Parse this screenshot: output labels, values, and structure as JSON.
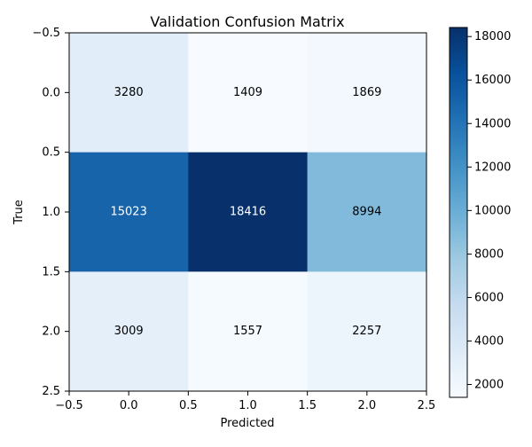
{
  "chart_data": {
    "type": "heatmap",
    "title": "Validation Confusion Matrix",
    "xlabel": "Predicted",
    "ylabel": "True",
    "x_ticks": [
      "−0.5",
      "0.0",
      "0.5",
      "1.0",
      "1.5",
      "2.0",
      "2.5"
    ],
    "y_ticks": [
      "−0.5",
      "0.0",
      "0.5",
      "1.0",
      "1.5",
      "2.0",
      "2.5"
    ],
    "x_tick_values": [
      -0.5,
      0.0,
      0.5,
      1.0,
      1.5,
      2.0,
      2.5
    ],
    "y_tick_values": [
      -0.5,
      0.0,
      0.5,
      1.0,
      1.5,
      2.0,
      2.5
    ],
    "xlim": [
      -0.5,
      2.5
    ],
    "ylim": [
      2.5,
      -0.5
    ],
    "matrix": [
      [
        3280,
        1409,
        1869
      ],
      [
        15023,
        18416,
        8994
      ],
      [
        3009,
        1557,
        2257
      ]
    ],
    "colorbar": {
      "colormap": "Blues",
      "vmin": 1409,
      "vmax": 18416,
      "ticks": [
        2000,
        4000,
        6000,
        8000,
        10000,
        12000,
        14000,
        16000,
        18000
      ],
      "tick_labels": [
        "2000",
        "4000",
        "6000",
        "8000",
        "10000",
        "12000",
        "14000",
        "16000",
        "18000"
      ]
    },
    "grid": false
  }
}
